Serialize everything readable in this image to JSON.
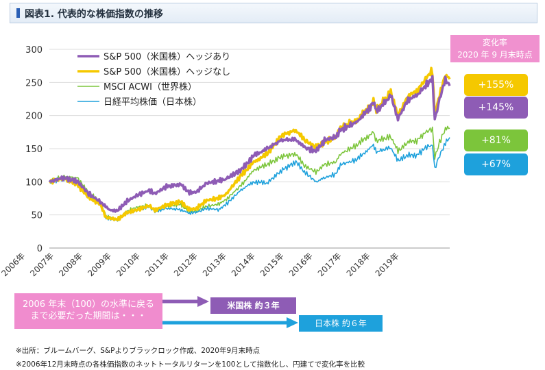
{
  "header": {
    "title": "図表1.  代表的な株価指数の推移"
  },
  "chart_data": {
    "type": "line",
    "x_labels": [
      "2006年",
      "2007年",
      "2008年",
      "2009年",
      "2010年",
      "2011年",
      "2012年",
      "2013年",
      "2014年",
      "2015年",
      "2016年",
      "2017年",
      "2018年",
      "2019年"
    ],
    "x_start": 2006.83,
    "x_end": 2020.75,
    "yticks": [
      0,
      50,
      100,
      150,
      200,
      250,
      300
    ],
    "ylim": [
      0,
      300
    ],
    "legend_position": "top-left",
    "series": [
      {
        "name": "S&P 500（米国株）ヘッジあり",
        "color": "#8e5cb5",
        "width": 3.5,
        "points": [
          [
            2006.83,
            100
          ],
          [
            2007.3,
            106
          ],
          [
            2007.8,
            101
          ],
          [
            2008.2,
            82
          ],
          [
            2008.6,
            70
          ],
          [
            2008.9,
            58
          ],
          [
            2009.2,
            56
          ],
          [
            2009.5,
            70
          ],
          [
            2009.9,
            80
          ],
          [
            2010.3,
            87
          ],
          [
            2010.5,
            82
          ],
          [
            2010.9,
            93
          ],
          [
            2011.4,
            96
          ],
          [
            2011.7,
            84
          ],
          [
            2011.95,
            85
          ],
          [
            2012.3,
            98
          ],
          [
            2012.7,
            101
          ],
          [
            2012.95,
            104
          ],
          [
            2013.5,
            118
          ],
          [
            2013.95,
            140
          ],
          [
            2014.4,
            150
          ],
          [
            2014.9,
            163
          ],
          [
            2015.4,
            164
          ],
          [
            2015.7,
            152
          ],
          [
            2016.1,
            146
          ],
          [
            2016.4,
            163
          ],
          [
            2016.8,
            168
          ],
          [
            2016.95,
            178
          ],
          [
            2017.5,
            190
          ],
          [
            2017.95,
            210
          ],
          [
            2018.1,
            222
          ],
          [
            2018.2,
            206
          ],
          [
            2018.7,
            230
          ],
          [
            2018.95,
            195
          ],
          [
            2019.3,
            224
          ],
          [
            2019.6,
            230
          ],
          [
            2019.95,
            247
          ],
          [
            2020.15,
            256
          ],
          [
            2020.23,
            193
          ],
          [
            2020.4,
            225
          ],
          [
            2020.6,
            255
          ],
          [
            2020.75,
            245
          ]
        ]
      },
      {
        "name": "S&P 500（米国株）ヘッジなし",
        "color": "#f5c800",
        "width": 3.5,
        "points": [
          [
            2006.83,
            100
          ],
          [
            2007.3,
            105
          ],
          [
            2007.8,
            96
          ],
          [
            2008.2,
            76
          ],
          [
            2008.6,
            66
          ],
          [
            2008.8,
            46
          ],
          [
            2009.2,
            43
          ],
          [
            2009.5,
            53
          ],
          [
            2009.9,
            58
          ],
          [
            2010.3,
            64
          ],
          [
            2010.5,
            57
          ],
          [
            2010.9,
            65
          ],
          [
            2011.4,
            70
          ],
          [
            2011.7,
            58
          ],
          [
            2011.95,
            60
          ],
          [
            2012.3,
            72
          ],
          [
            2012.7,
            75
          ],
          [
            2012.95,
            80
          ],
          [
            2013.5,
            110
          ],
          [
            2013.95,
            130
          ],
          [
            2014.4,
            142
          ],
          [
            2014.9,
            170
          ],
          [
            2015.4,
            178
          ],
          [
            2015.7,
            163
          ],
          [
            2016.1,
            152
          ],
          [
            2016.4,
            160
          ],
          [
            2016.8,
            167
          ],
          [
            2016.95,
            182
          ],
          [
            2017.5,
            192
          ],
          [
            2017.95,
            212
          ],
          [
            2018.1,
            222
          ],
          [
            2018.2,
            208
          ],
          [
            2018.7,
            235
          ],
          [
            2018.95,
            200
          ],
          [
            2019.3,
            230
          ],
          [
            2019.6,
            236
          ],
          [
            2019.95,
            258
          ],
          [
            2020.15,
            268
          ],
          [
            2020.23,
            200
          ],
          [
            2020.4,
            232
          ],
          [
            2020.6,
            262
          ],
          [
            2020.75,
            255
          ]
        ]
      },
      {
        "name": "MSCI ACWI（世界株）",
        "color": "#7cc53b",
        "width": 1.6,
        "points": [
          [
            2006.83,
            100
          ],
          [
            2007.3,
            108
          ],
          [
            2007.8,
            106
          ],
          [
            2008.2,
            84
          ],
          [
            2008.6,
            70
          ],
          [
            2008.8,
            48
          ],
          [
            2009.2,
            42
          ],
          [
            2009.5,
            55
          ],
          [
            2009.9,
            62
          ],
          [
            2010.3,
            64
          ],
          [
            2010.5,
            57
          ],
          [
            2010.9,
            64
          ],
          [
            2011.4,
            66
          ],
          [
            2011.7,
            54
          ],
          [
            2011.95,
            56
          ],
          [
            2012.3,
            63
          ],
          [
            2012.7,
            66
          ],
          [
            2012.95,
            72
          ],
          [
            2013.5,
            95
          ],
          [
            2013.95,
            118
          ],
          [
            2014.4,
            126
          ],
          [
            2014.9,
            138
          ],
          [
            2015.4,
            142
          ],
          [
            2015.7,
            124
          ],
          [
            2016.1,
            115
          ],
          [
            2016.4,
            126
          ],
          [
            2016.8,
            130
          ],
          [
            2016.95,
            142
          ],
          [
            2017.5,
            155
          ],
          [
            2017.95,
            170
          ],
          [
            2018.1,
            175
          ],
          [
            2018.2,
            162
          ],
          [
            2018.7,
            168
          ],
          [
            2018.95,
            146
          ],
          [
            2019.3,
            160
          ],
          [
            2019.6,
            162
          ],
          [
            2019.95,
            176
          ],
          [
            2020.15,
            180
          ],
          [
            2020.23,
            136
          ],
          [
            2020.4,
            160
          ],
          [
            2020.6,
            180
          ],
          [
            2020.75,
            181
          ]
        ]
      },
      {
        "name": "日経平均株価（日本株）",
        "color": "#1ea1dc",
        "width": 1.6,
        "points": [
          [
            2006.83,
            100
          ],
          [
            2007.3,
            104
          ],
          [
            2007.8,
            100
          ],
          [
            2008.2,
            80
          ],
          [
            2008.6,
            66
          ],
          [
            2008.8,
            45
          ],
          [
            2009.2,
            42
          ],
          [
            2009.5,
            52
          ],
          [
            2009.9,
            58
          ],
          [
            2010.3,
            62
          ],
          [
            2010.5,
            55
          ],
          [
            2010.9,
            60
          ],
          [
            2011.4,
            58
          ],
          [
            2011.7,
            52
          ],
          [
            2011.95,
            54
          ],
          [
            2012.3,
            60
          ],
          [
            2012.7,
            58
          ],
          [
            2012.95,
            65
          ],
          [
            2013.5,
            88
          ],
          [
            2013.95,
            100
          ],
          [
            2014.4,
            98
          ],
          [
            2014.9,
            117
          ],
          [
            2015.4,
            130
          ],
          [
            2015.7,
            115
          ],
          [
            2016.1,
            100
          ],
          [
            2016.4,
            106
          ],
          [
            2016.8,
            112
          ],
          [
            2016.95,
            126
          ],
          [
            2017.5,
            133
          ],
          [
            2017.95,
            150
          ],
          [
            2018.1,
            155
          ],
          [
            2018.2,
            145
          ],
          [
            2018.7,
            152
          ],
          [
            2018.95,
            132
          ],
          [
            2019.3,
            140
          ],
          [
            2019.6,
            140
          ],
          [
            2019.95,
            153
          ],
          [
            2020.15,
            155
          ],
          [
            2020.23,
            120
          ],
          [
            2020.4,
            140
          ],
          [
            2020.6,
            158
          ],
          [
            2020.75,
            167
          ]
        ]
      }
    ],
    "change_rate": {
      "title_line1": "変化率",
      "title_line2": "2020 年 9 月末時点",
      "values": [
        {
          "label": "+155%",
          "color": "#f5c800"
        },
        {
          "label": "+145%",
          "color": "#8e5cb5"
        },
        {
          "label": "+81%",
          "color": "#7cc53b"
        },
        {
          "label": "+67%",
          "color": "#1ea1dc"
        }
      ]
    }
  },
  "recovery": {
    "note_line1": "2006 年末（100）の水準に戻る",
    "note_line2": "まで必要だった期間は・・・",
    "us_label": "米国株 約３年",
    "jp_label": "日本株 約６年",
    "us_color": "#8e5cb5",
    "jp_color": "#1ea1dc"
  },
  "footnotes": [
    "※出所：ブルームバーグ、S&Pよりブラックロック作成、2020年9月末時点",
    "※2006年12月末時点の各株価指数のネットトータルリターンを100として指数化し、円建てで変化率を比較"
  ]
}
